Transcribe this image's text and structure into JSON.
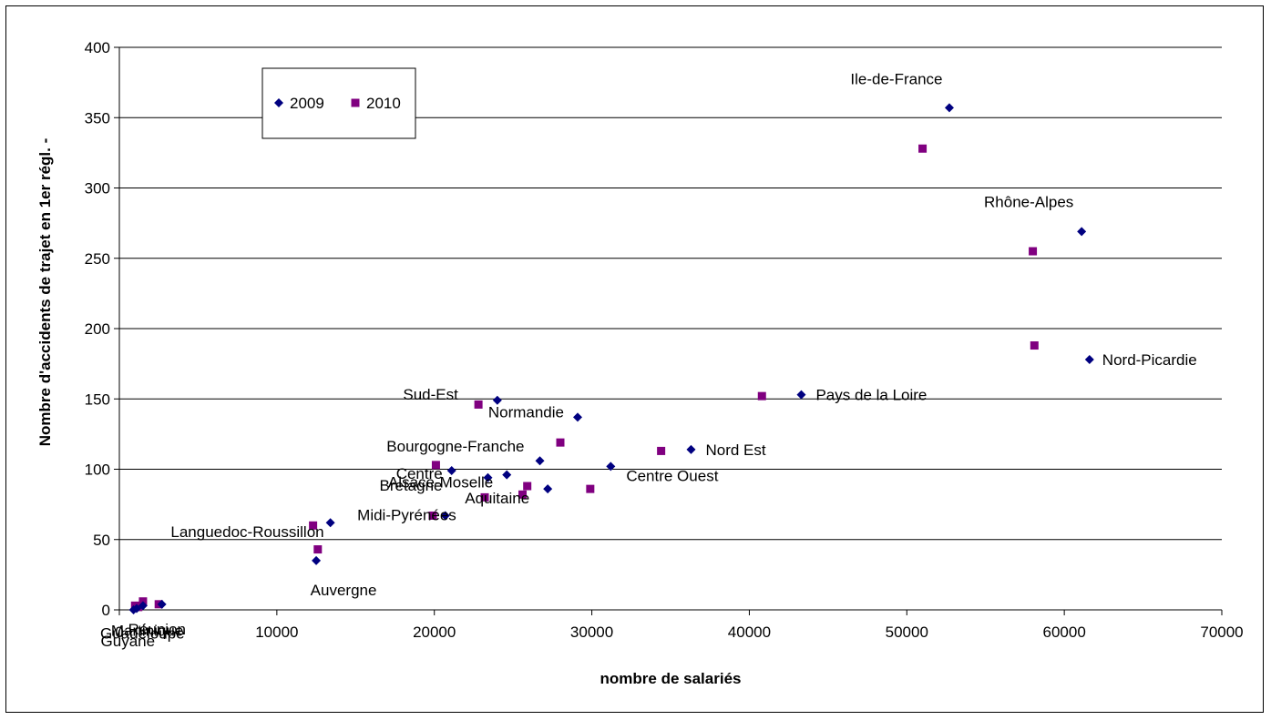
{
  "chart_data": {
    "type": "scatter",
    "title": "",
    "xlabel": "nombre de salariés",
    "ylabel": "Nombre d'accidents de trajet en 1er régl. -",
    "xlim": [
      0,
      70000
    ],
    "ylim": [
      0,
      400
    ],
    "x_ticks": [
      0,
      10000,
      20000,
      30000,
      40000,
      50000,
      60000,
      70000
    ],
    "y_ticks": [
      0,
      50,
      100,
      150,
      200,
      250,
      300,
      350,
      400
    ],
    "grid": "horizontal",
    "legend": {
      "placement": "top-left",
      "entries": [
        "2009",
        "2010"
      ]
    },
    "colors": {
      "2009": "#000080",
      "2010": "#800080"
    },
    "series": [
      {
        "name": "2009",
        "marker": "diamond",
        "points": [
          {
            "label": "Ile-de-France",
            "x": 52700,
            "y": 357
          },
          {
            "label": "Rhône-Alpes",
            "x": 61100,
            "y": 269
          },
          {
            "label": "Nord-Picardie",
            "x": 61600,
            "y": 178
          },
          {
            "label": "Pays de la Loire",
            "x": 43300,
            "y": 153
          },
          {
            "label": "Nord Est",
            "x": 36300,
            "y": 114
          },
          {
            "label": "Centre Ouest",
            "x": 31200,
            "y": 102
          },
          {
            "label": "Sud-Est",
            "x": 24000,
            "y": 149
          },
          {
            "label": "Normandie",
            "x": 29100,
            "y": 137
          },
          {
            "label": "Bourgogne-Franche",
            "x": 26700,
            "y": 106
          },
          {
            "label": "Alsace-Moselle",
            "x": 24600,
            "y": 96
          },
          {
            "label": "Centre",
            "x": 21100,
            "y": 99
          },
          {
            "label": "Bretagne",
            "x": 23400,
            "y": 94
          },
          {
            "label": "Aquitaine",
            "x": 27200,
            "y": 86
          },
          {
            "label": "Midi-Pyrénées",
            "x": 20700,
            "y": 67
          },
          {
            "label": "Languedoc-Roussillon",
            "x": 13400,
            "y": 62
          },
          {
            "label": "Auvergne",
            "x": 12500,
            "y": 35
          },
          {
            "label": "Guadeloupe",
            "x": 1100,
            "y": 1
          },
          {
            "label": "Martinique",
            "x": 1500,
            "y": 3
          },
          {
            "label": "Réunion",
            "x": 2700,
            "y": 4
          },
          {
            "label": "Guyane",
            "x": 900,
            "y": 0
          }
        ]
      },
      {
        "name": "2010",
        "marker": "square",
        "points": [
          {
            "x": 51000,
            "y": 328
          },
          {
            "x": 58000,
            "y": 255
          },
          {
            "x": 58100,
            "y": 188
          },
          {
            "x": 40800,
            "y": 152
          },
          {
            "x": 34400,
            "y": 113
          },
          {
            "x": 29900,
            "y": 86
          },
          {
            "x": 22800,
            "y": 146
          },
          {
            "x": 28000,
            "y": 119
          },
          {
            "x": 25900,
            "y": 88
          },
          {
            "x": 25600,
            "y": 82
          },
          {
            "x": 20100,
            "y": 103
          },
          {
            "x": 23200,
            "y": 80
          },
          {
            "x": 19900,
            "y": 67
          },
          {
            "x": 12300,
            "y": 60
          },
          {
            "x": 12600,
            "y": 43
          },
          {
            "x": 1000,
            "y": 3
          },
          {
            "x": 1500,
            "y": 6
          },
          {
            "x": 2500,
            "y": 4
          },
          {
            "x": 1200,
            "y": 2
          }
        ]
      }
    ]
  }
}
